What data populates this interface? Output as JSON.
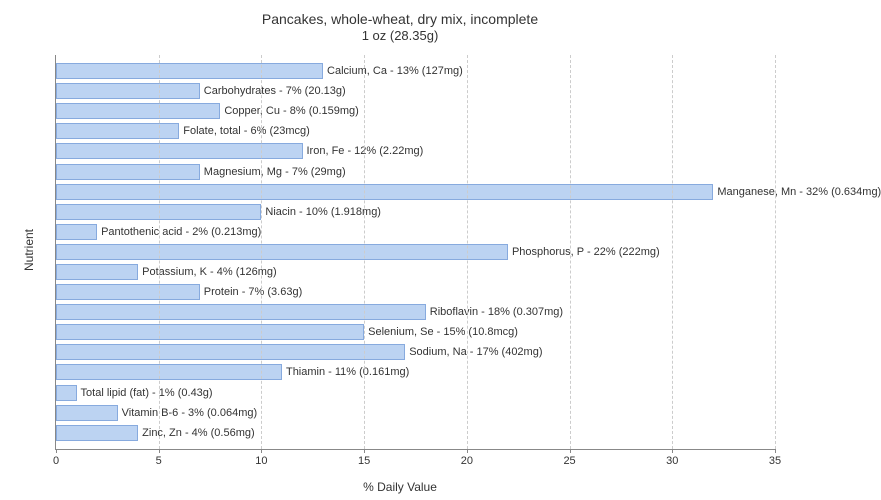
{
  "chart": {
    "type": "bar-horizontal",
    "title_main": "Pancakes, whole-wheat, dry mix, incomplete",
    "title_sub": "1 oz (28.35g)",
    "title_fontsize": 14,
    "y_axis_label": "Nutrient",
    "x_axis_label": "% Daily Value",
    "label_fontsize": 12,
    "tick_fontsize": 11,
    "background_color": "#ffffff",
    "bar_color": "#bcd3f2",
    "bar_border_color": "#87aade",
    "grid_color": "#cccccc",
    "axis_color": "#888888",
    "xlim": [
      0,
      35
    ],
    "xtick_step": 5,
    "bars": [
      {
        "label": "Calcium, Ca - 13% (127mg)",
        "value": 13
      },
      {
        "label": "Carbohydrates - 7% (20.13g)",
        "value": 7
      },
      {
        "label": "Copper, Cu - 8% (0.159mg)",
        "value": 8
      },
      {
        "label": "Folate, total - 6% (23mcg)",
        "value": 6
      },
      {
        "label": "Iron, Fe - 12% (2.22mg)",
        "value": 12
      },
      {
        "label": "Magnesium, Mg - 7% (29mg)",
        "value": 7
      },
      {
        "label": "Manganese, Mn - 32% (0.634mg)",
        "value": 32
      },
      {
        "label": "Niacin - 10% (1.918mg)",
        "value": 10
      },
      {
        "label": "Pantothenic acid - 2% (0.213mg)",
        "value": 2
      },
      {
        "label": "Phosphorus, P - 22% (222mg)",
        "value": 22
      },
      {
        "label": "Potassium, K - 4% (126mg)",
        "value": 4
      },
      {
        "label": "Protein - 7% (3.63g)",
        "value": 7
      },
      {
        "label": "Riboflavin - 18% (0.307mg)",
        "value": 18
      },
      {
        "label": "Selenium, Se - 15% (10.8mcg)",
        "value": 15
      },
      {
        "label": "Sodium, Na - 17% (402mg)",
        "value": 17
      },
      {
        "label": "Thiamin - 11% (0.161mg)",
        "value": 11
      },
      {
        "label": "Total lipid (fat) - 1% (0.43g)",
        "value": 1
      },
      {
        "label": "Vitamin B-6 - 3% (0.064mg)",
        "value": 3
      },
      {
        "label": "Zinc, Zn - 4% (0.56mg)",
        "value": 4
      }
    ]
  }
}
